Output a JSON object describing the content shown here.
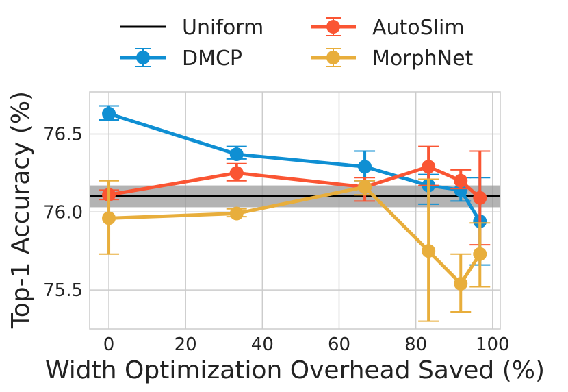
{
  "chart_data": {
    "type": "line",
    "xlabel": "Width Optimization Overhead Saved (%)",
    "ylabel": "Top-1 Accuracy (%)",
    "xlim": [
      -5,
      102
    ],
    "ylim": [
      75.25,
      76.77
    ],
    "xticks": [
      0,
      20,
      40,
      60,
      80,
      100
    ],
    "yticks": [
      75.5,
      76.0,
      76.5
    ],
    "xtick_labels": [
      "0",
      "20",
      "40",
      "60",
      "80",
      "100"
    ],
    "ytick_labels": [
      "75.5",
      "76.0",
      "76.5"
    ],
    "grid": true,
    "legend_position": "top",
    "baseline": {
      "name": "Uniform",
      "value": 76.1,
      "band": [
        76.03,
        76.17
      ],
      "color": "#000000",
      "band_color": "#999999"
    },
    "series": [
      {
        "name": "DMCP",
        "color": "#0F8FD3",
        "x": [
          0,
          33.3,
          66.7,
          83.3,
          91.7,
          96.7
        ],
        "y": [
          76.63,
          76.37,
          76.29,
          76.17,
          76.14,
          75.94
        ],
        "err_low": [
          76.59,
          76.34,
          76.2,
          76.05,
          76.07,
          75.66
        ],
        "err_high": [
          76.68,
          76.42,
          76.39,
          76.24,
          76.22,
          76.22
        ]
      },
      {
        "name": "AutoSlim",
        "color": "#FA5533",
        "x": [
          0,
          33.3,
          66.7,
          83.3,
          91.7,
          96.7
        ],
        "y": [
          76.11,
          76.25,
          76.16,
          76.29,
          76.2,
          76.09
        ],
        "err_low": [
          76.08,
          76.2,
          76.07,
          76.17,
          76.15,
          75.79
        ],
        "err_high": [
          76.14,
          76.31,
          76.22,
          76.42,
          76.27,
          76.39
        ]
      },
      {
        "name": "MorphNet",
        "color": "#E8AE3C",
        "x": [
          0,
          33.3,
          66.7,
          83.3,
          91.7,
          96.7
        ],
        "y": [
          75.96,
          75.99,
          76.16,
          75.75,
          75.54,
          75.73
        ],
        "err_low": [
          75.73,
          75.97,
          76.11,
          75.3,
          75.36,
          75.52
        ],
        "err_high": [
          76.2,
          76.02,
          76.2,
          76.21,
          75.73,
          75.93
        ]
      }
    ]
  }
}
